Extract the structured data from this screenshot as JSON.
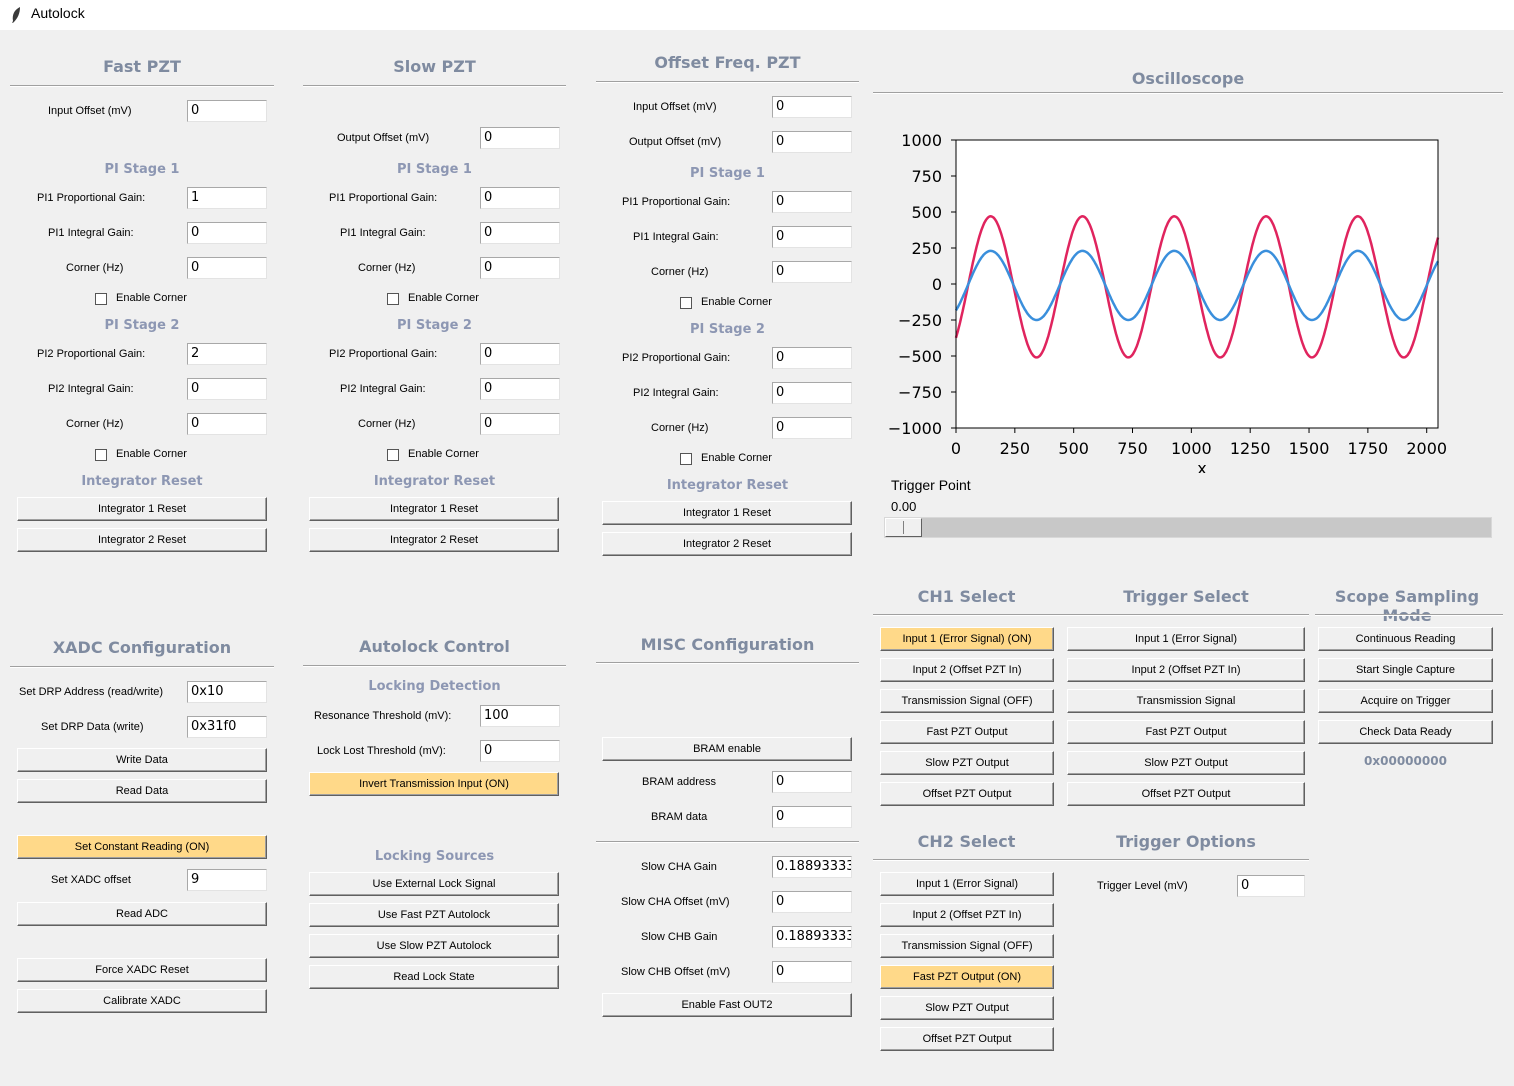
{
  "window": {
    "title": "Autolock"
  },
  "fast_pzt": {
    "title": "Fast PZT",
    "input_offset": {
      "label": "Input Offset (mV)",
      "value": "0"
    },
    "pi1": {
      "title": "PI Stage 1",
      "prop_label": "PI1 Proportional Gain:",
      "prop": "1",
      "int_label": "PI1 Integral Gain:",
      "int": "0",
      "corner_label": "Corner (Hz)",
      "corner": "0",
      "enable_label": "Enable Corner"
    },
    "pi2": {
      "title": "PI Stage 2",
      "prop_label": "PI2 Proportional Gain:",
      "prop": "2",
      "int_label": "PI2 Integral Gain:",
      "int": "0",
      "corner_label": "Corner (Hz)",
      "corner": "0",
      "enable_label": "Enable Corner"
    },
    "reset": {
      "title": "Integrator Reset",
      "btn1": "Integrator 1 Reset",
      "btn2": "Integrator 2 Reset"
    }
  },
  "slow_pzt": {
    "title": "Slow PZT",
    "output_offset": {
      "label": "Output Offset (mV)",
      "value": "0"
    },
    "pi1": {
      "title": "PI Stage 1",
      "prop_label": "PI1 Proportional Gain:",
      "prop": "0",
      "int_label": "PI1 Integral Gain:",
      "int": "0",
      "corner_label": "Corner (Hz)",
      "corner": "0",
      "enable_label": "Enable Corner"
    },
    "pi2": {
      "title": "PI Stage 2",
      "prop_label": "PI2 Proportional Gain:",
      "prop": "0",
      "int_label": "PI2 Integral Gain:",
      "int": "0",
      "corner_label": "Corner (Hz)",
      "corner": "0",
      "enable_label": "Enable Corner"
    },
    "reset": {
      "title": "Integrator Reset",
      "btn1": "Integrator 1 Reset",
      "btn2": "Integrator 2 Reset"
    }
  },
  "offset_pzt": {
    "title": "Offset Freq. PZT",
    "input_offset": {
      "label": "Input Offset (mV)",
      "value": "0"
    },
    "output_offset": {
      "label": "Output Offset (mV)",
      "value": "0"
    },
    "pi1": {
      "title": "PI Stage 1",
      "prop_label": "PI1 Proportional Gain:",
      "prop": "0",
      "int_label": "PI1 Integral Gain:",
      "int": "0",
      "corner_label": "Corner (Hz)",
      "corner": "0",
      "enable_label": "Enable Corner"
    },
    "pi2": {
      "title": "PI Stage 2",
      "prop_label": "PI2 Proportional Gain:",
      "prop": "0",
      "int_label": "PI2 Integral Gain:",
      "int": "0",
      "corner_label": "Corner (Hz)",
      "corner": "0",
      "enable_label": "Enable Corner"
    },
    "reset": {
      "title": "Integrator Reset",
      "btn1": "Integrator 1 Reset",
      "btn2": "Integrator 2 Reset"
    }
  },
  "oscilloscope": {
    "title": "Oscilloscope",
    "trigger_label": "Trigger Point",
    "trigger_value": "0.00",
    "trigger_fraction": 0
  },
  "chart_data": {
    "type": "line",
    "xlim": [
      0,
      2048
    ],
    "ylim": [
      -1000,
      1000
    ],
    "xticks": [
      0,
      250,
      500,
      750,
      1000,
      1250,
      1500,
      1750,
      2000
    ],
    "yticks": [
      1000,
      750,
      500,
      250,
      0,
      -250,
      -500,
      -750,
      -1000
    ],
    "xlabel": "x",
    "grid": false,
    "series": [
      {
        "color": "#e0245e",
        "amplitude": 490,
        "offset": -20,
        "period": 390,
        "phase_x": 50
      },
      {
        "color": "#3a8fdc",
        "amplitude": 240,
        "offset": -10,
        "period": 390,
        "phase_x": 50
      }
    ]
  },
  "xadc": {
    "title": "XADC Configuration",
    "drp_addr": {
      "label": "Set DRP Address (read/write)",
      "value": "0x10"
    },
    "drp_data": {
      "label": "Set DRP Data (write)",
      "value": "0x31f0"
    },
    "write_btn": "Write Data",
    "read_btn": "Read Data",
    "const_btn": "Set Constant Reading (ON)",
    "offset": {
      "label": "Set XADC offset",
      "value": "9"
    },
    "read_adc_btn": "Read ADC",
    "force_reset_btn": "Force XADC Reset",
    "calibrate_btn": "Calibrate XADC"
  },
  "autolock": {
    "title": "Autolock Control",
    "detect_title": "Locking Detection",
    "res_thresh": {
      "label": "Resonance Threshold (mV):",
      "value": "100"
    },
    "lost_thresh": {
      "label": "Lock Lost Threshold (mV):",
      "value": "0"
    },
    "invert_btn": "Invert Transmission Input (ON)",
    "sources_title": "Locking Sources",
    "ext_btn": "Use External Lock Signal",
    "fast_btn": "Use Fast PZT Autolock",
    "slow_btn": "Use Slow PZT Autolock",
    "read_state_btn": "Read Lock State"
  },
  "misc": {
    "title": "MISC Configuration",
    "bram_btn": "BRAM enable",
    "bram_addr": {
      "label": "BRAM address",
      "value": "0"
    },
    "bram_data": {
      "label": "BRAM data",
      "value": "0"
    },
    "cha_gain": {
      "label": "Slow CHA Gain",
      "value": "0.188933333"
    },
    "cha_offset": {
      "label": "Slow CHA Offset (mV)",
      "value": "0"
    },
    "chb_gain": {
      "label": "Slow CHB Gain",
      "value": "0.188933333"
    },
    "chb_offset": {
      "label": "Slow CHB Offset (mV)",
      "value": "0"
    },
    "fast_out2_btn": "Enable Fast OUT2"
  },
  "ch1": {
    "title": "CH1 Select",
    "items": [
      "Input 1 (Error Signal) (ON)",
      "Input 2 (Offset PZT In)",
      "Transmission Signal (OFF)",
      "Fast PZT Output",
      "Slow PZT Output",
      "Offset PZT Output"
    ]
  },
  "trigger": {
    "title": "Trigger Select",
    "items": [
      "Input 1 (Error Signal)",
      "Input 2 (Offset PZT In)",
      "Transmission Signal",
      "Fast PZT Output",
      "Slow PZT Output",
      "Offset PZT Output"
    ]
  },
  "scope_mode": {
    "title": "Scope Sampling Mode",
    "items": [
      "Continuous Reading",
      "Start Single Capture",
      "Acquire on Trigger",
      "Check Data Ready"
    ],
    "status": "0x00000000"
  },
  "ch2": {
    "title": "CH2 Select",
    "items": [
      "Input 1 (Error Signal)",
      "Input 2 (Offset PZT In)",
      "Transmission Signal (OFF)",
      "Fast PZT Output (ON)",
      "Slow PZT Output",
      "Offset PZT Output"
    ]
  },
  "trigger_opts": {
    "title": "Trigger Options",
    "level": {
      "label": "Trigger Level (mV)",
      "value": "0"
    }
  }
}
